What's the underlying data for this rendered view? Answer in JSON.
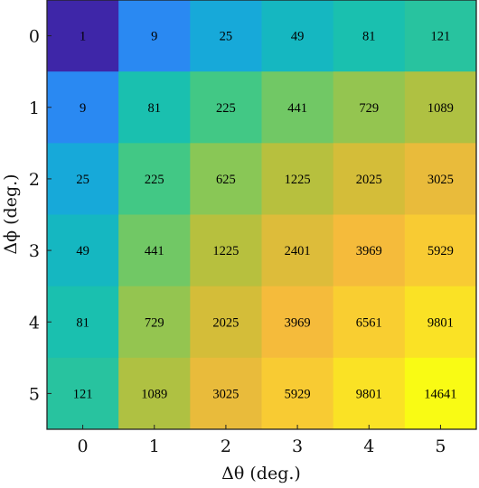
{
  "chart_data": {
    "type": "heatmap",
    "x_categories": [
      "0",
      "1",
      "2",
      "3",
      "4",
      "5"
    ],
    "y_categories": [
      "0",
      "1",
      "2",
      "3",
      "4",
      "5"
    ],
    "values": [
      [
        1,
        9,
        25,
        49,
        81,
        121
      ],
      [
        9,
        81,
        225,
        441,
        729,
        1089
      ],
      [
        25,
        225,
        625,
        1225,
        2025,
        3025
      ],
      [
        49,
        441,
        1225,
        2401,
        3969,
        5929
      ],
      [
        81,
        729,
        2025,
        3969,
        6561,
        9801
      ],
      [
        121,
        1089,
        3025,
        5929,
        9801,
        14641
      ]
    ],
    "xlabel": "Δθ (deg.)",
    "ylabel": "Δϕ (deg.)",
    "colormap": "parula",
    "color_scale": "log",
    "cell_labels_shown": true
  }
}
